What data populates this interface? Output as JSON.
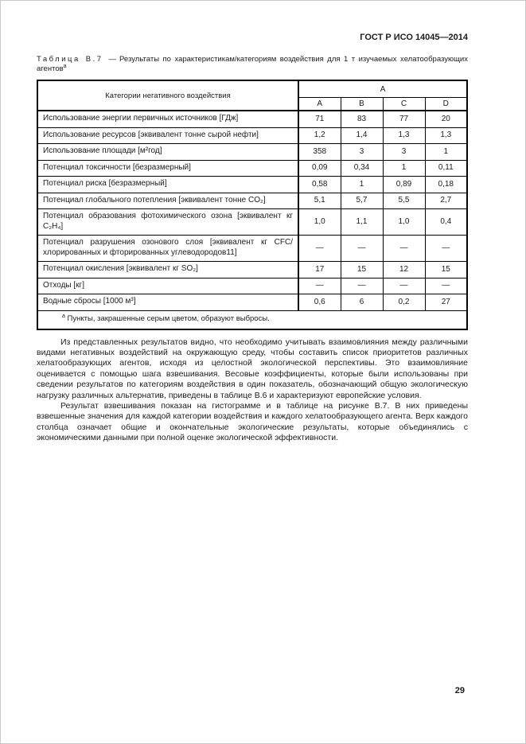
{
  "page": {
    "header": "ГОСТ Р ИСО 14045—2014",
    "page_number": "29"
  },
  "table": {
    "caption_label": "Таблица В.7",
    "caption_dash": "—",
    "caption_text": "Результаты по характеристикам/категориям воздействия для 1 т изучаемых хелатообразующих агентов",
    "caption_footnote_marker": "а",
    "col_header_main": "Категории негативного воздействия",
    "col_group_header": "А",
    "col_headers": [
      "А",
      "В",
      "С",
      "D"
    ],
    "rows": [
      {
        "label": "Использование энергии первичных источников [ГДж]",
        "values": [
          "71",
          "83",
          "77",
          "20"
        ]
      },
      {
        "label": "Использование ресурсов [эквивалент тонне сырой нефти]",
        "values": [
          "1,2",
          "1,4",
          "1,3",
          "1,3"
        ]
      },
      {
        "label": "Использование площади [м²год]",
        "values": [
          "358",
          "3",
          "3",
          "1"
        ]
      },
      {
        "label": "Потенциал токсичности [безразмерный]",
        "values": [
          "0,09",
          "0,34",
          "1",
          "0,11"
        ]
      },
      {
        "label": "Потенциал риска [безразмерный]",
        "values": [
          "0,58",
          "1",
          "0,89",
          "0,18"
        ]
      },
      {
        "label": "Потенциал глобального потепления [эквивалент тонне CO₂]",
        "values": [
          "5,1",
          "5,7",
          "5,5",
          "2,7"
        ]
      },
      {
        "label": "Потенциал образования фотохимического озона [эквивалент кг C₂H₄]",
        "values": [
          "1,0",
          "1,1",
          "1,0",
          "0,4"
        ]
      },
      {
        "label": "Потенциал разрушения озонового слоя [эквивалент кг CFC/ хлорированных и фторированных углеводородов11]",
        "values": [
          "—",
          "—",
          "—",
          "—"
        ]
      },
      {
        "label": "Потенциал окисления [эквивалент кг SO₂]",
        "values": [
          "17",
          "15",
          "12",
          "15"
        ]
      },
      {
        "label": "Отходы [кг]",
        "values": [
          "—",
          "—",
          "—",
          "—"
        ]
      },
      {
        "label": "Водные сбросы [1000 м³]",
        "values": [
          "0,6",
          "6",
          "0,2",
          "27"
        ]
      }
    ],
    "footnote_marker": "а",
    "footnote_text": "Пункты, закрашенные серым цветом, образуют выбросы."
  },
  "paragraphs": [
    "Из представленных результатов видно, что необходимо учитывать взаимовлияния между различными видами негативных воздействий на окружающую среду, чтобы составить список приоритетов различных хелатообразующих агентов, исходя из целостной экологической перспективы. Это взаимовлияние оценивается с помощью шага взвешивания. Весовые коэффициенты, которые были использованы при сведении результатов по категориям воздействия в один показатель, обозначающий общую экологическую нагрузку различных альтернатив, приведены в таблице В.6 и характеризуют европейские условия.",
    "Результат взвешивания показан на гистограмме и в таблице на рисунке В.7. В них приведены взвешенные значения для каждой категории воздействия и каждого хелатообразующего агента. Верх каждого столбца означает общие и окончательные экологические результаты, которые объединялись с экономическими данными при полной оценке экологической эффективности."
  ]
}
